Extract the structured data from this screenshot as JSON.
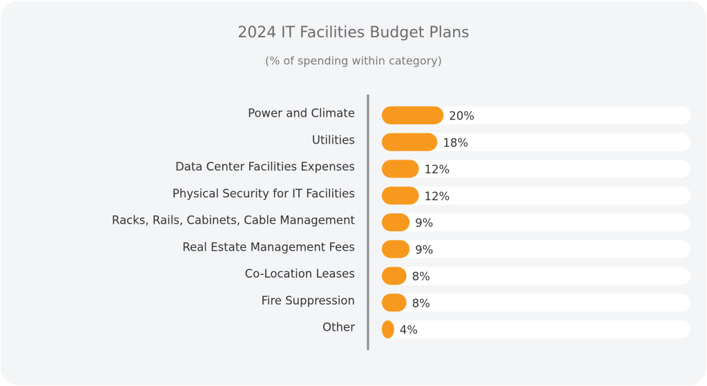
{
  "chart_data": {
    "type": "bar",
    "orientation": "horizontal",
    "title": "2024 IT Facilities Budget Plans",
    "subtitle": "(% of spending within category)",
    "categories": [
      "Power and Climate",
      "Utilities",
      "Data Center Facilities Expenses",
      "Physical Security for IT Facilities",
      "Racks, Rails, Cabinets, Cable Management",
      "Real Estate Management Fees",
      "Co-Location Leases",
      "Fire Suppression",
      "Other"
    ],
    "values": [
      20,
      18,
      12,
      12,
      9,
      9,
      8,
      8,
      4
    ],
    "value_labels": [
      "20%",
      "18%",
      "12%",
      "12%",
      "9%",
      "9%",
      "8%",
      "8%",
      "4%"
    ],
    "color": "#f7991f",
    "xlim": [
      0,
      100
    ]
  }
}
